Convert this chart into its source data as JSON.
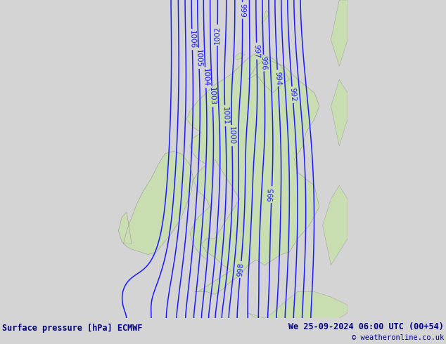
{
  "title_left": "Surface pressure [hPa] ECMWF",
  "title_right": "We 25-09-2024 06:00 UTC (00+54)",
  "copyright": "© weatheronline.co.uk",
  "bg_color": "#d4d4d4",
  "land_color": "#c8ddb0",
  "contour_color": "#1a1aff",
  "contour_label_color": "#1a1aff",
  "footer_bg": "#c0c0c0",
  "footer_text_color": "#000080",
  "figsize": [
    6.34,
    4.9
  ],
  "dpi": 100,
  "xlim": [
    -11.5,
    3.5
  ],
  "ylim": [
    49.0,
    61.0
  ]
}
